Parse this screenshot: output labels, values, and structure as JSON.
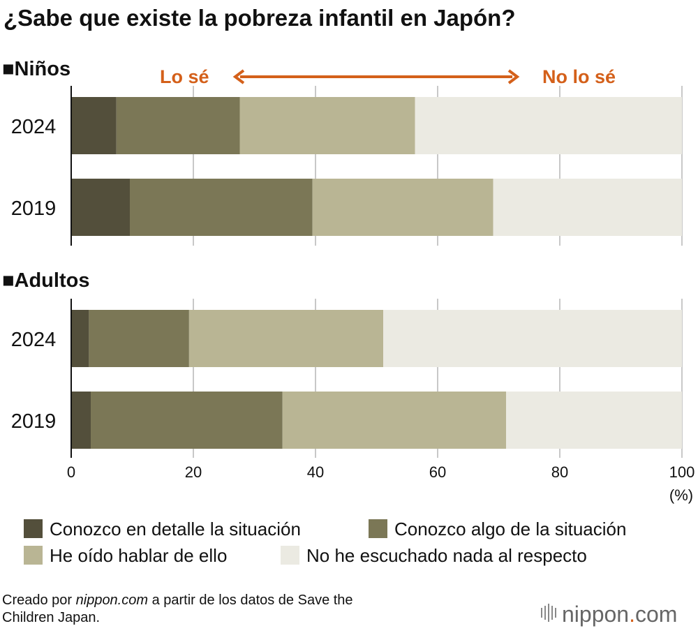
{
  "title": "¿Sabe que existe la pobreza infantil en Japón?",
  "colors": {
    "detail": "#534f3b",
    "some": "#7b7756",
    "heard": "#b9b594",
    "none": "#ebeae2",
    "accent": "#d4601a",
    "grid": "#c8c8c8",
    "text": "#111111"
  },
  "arrow": {
    "left_label": "Lo sé",
    "right_label": "No lo sé"
  },
  "chart_data": {
    "type": "bar",
    "orientation": "horizontal",
    "stacked": true,
    "xlim": [
      0,
      100
    ],
    "xticks": [
      0,
      20,
      40,
      60,
      80,
      100
    ],
    "xunit": "(%)",
    "grid": true,
    "legend_position": "bottom",
    "series": [
      {
        "name": "Conozco en detalle la situación",
        "color": "#534f3b"
      },
      {
        "name": "Conozco algo de la situación",
        "color": "#7b7756"
      },
      {
        "name": "He oído hablar de ello",
        "color": "#b9b594"
      },
      {
        "name": "No he escuchado nada al respecto",
        "color": "#ebeae2"
      }
    ],
    "groups": [
      {
        "label": "■Niños",
        "rows": [
          {
            "year": "2024",
            "values": [
              7.4,
              20.2,
              28.7,
              43.7
            ]
          },
          {
            "year": "2019",
            "values": [
              9.6,
              29.9,
              29.6,
              30.9
            ]
          }
        ]
      },
      {
        "label": "■Adultos",
        "rows": [
          {
            "year": "2024",
            "values": [
              2.9,
              16.4,
              31.8,
              48.9
            ]
          },
          {
            "year": "2019",
            "values": [
              3.2,
              31.4,
              36.6,
              28.8
            ]
          }
        ]
      }
    ]
  },
  "footer": {
    "source_prefix": "Creado por ",
    "source_site": "nippon.com",
    "source_line1_rest": " a partir de los datos de Save the",
    "source_line2": "Children Japan.",
    "logo_main": "nippon",
    "logo_dot": ".",
    "logo_tld": "com"
  }
}
